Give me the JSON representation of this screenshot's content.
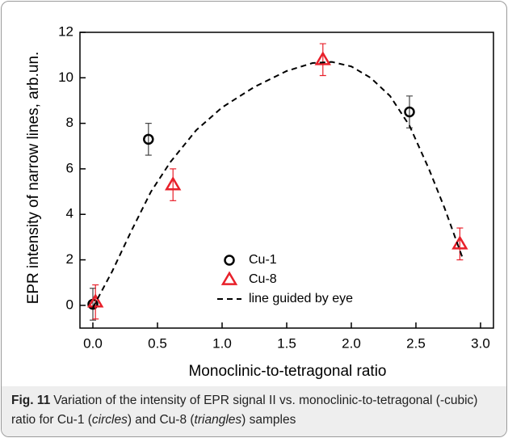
{
  "chart_data": {
    "type": "scatter",
    "xlabel": "Monoclinic-to-tetragonal ratio",
    "ylabel": "EPR intensity of narrow lines, arb.un.",
    "xlim": [
      -0.1,
      3.1
    ],
    "ylim": [
      -1,
      12
    ],
    "xticks": [
      {
        "value": 0,
        "label": "0.0"
      },
      {
        "value": 0.5,
        "label": "0.5"
      },
      {
        "value": 1,
        "label": "1.0"
      },
      {
        "value": 1.5,
        "label": "1.5"
      },
      {
        "value": 2,
        "label": "2.0"
      },
      {
        "value": 2.5,
        "label": "2.5"
      },
      {
        "value": 3,
        "label": "3.0"
      }
    ],
    "yticks": [
      0,
      2,
      4,
      6,
      8,
      10,
      12
    ],
    "series": [
      {
        "name": "Cu-1",
        "color": "#000000",
        "marker": "circle",
        "x": [
          0.0,
          0.43,
          2.45
        ],
        "values": [
          0.05,
          7.3,
          8.5
        ],
        "errors": [
          0.7,
          0.7,
          0.7
        ]
      },
      {
        "name": "Cu-8",
        "color": "#e8202a",
        "marker": "triangle",
        "x": [
          0.02,
          0.62,
          1.78,
          2.84
        ],
        "values": [
          0.15,
          5.3,
          10.8,
          2.7
        ],
        "errors": [
          0.75,
          0.7,
          0.7,
          0.7
        ]
      },
      {
        "name": "line guided by eye",
        "color": "#000000",
        "marker": "dashed-line",
        "x": [
          0.0,
          0.15,
          0.3,
          0.45,
          0.6,
          0.8,
          1.0,
          1.25,
          1.5,
          1.7,
          1.85,
          2.0,
          2.15,
          2.3,
          2.45,
          2.6,
          2.72,
          2.86
        ],
        "values": [
          -0.1,
          1.5,
          3.3,
          5.0,
          6.3,
          7.7,
          8.7,
          9.6,
          10.3,
          10.65,
          10.7,
          10.5,
          10.0,
          9.2,
          7.9,
          6.0,
          4.3,
          2.1
        ]
      }
    ]
  },
  "caption": {
    "label": "Fig. 11",
    "parts": [
      "Variation of the intensity of EPR signal II vs. monoclinic-to-tetragonal (-cubic) ratio for Cu-1 (",
      "circles",
      ") and Cu-8 (",
      "triangles",
      ") samples"
    ]
  }
}
